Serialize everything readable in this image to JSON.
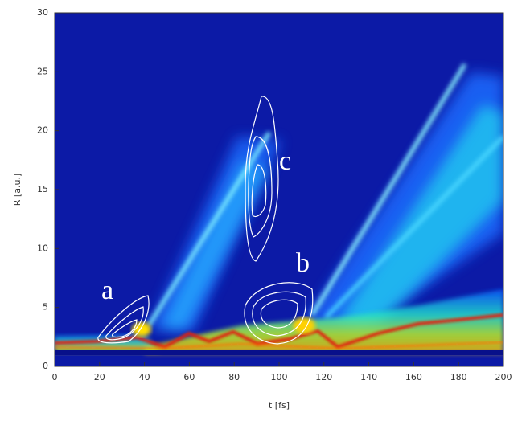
{
  "chart_data": {
    "type": "heatmap",
    "xlabel": "t [fs]",
    "ylabel": "R [a.u.]",
    "xlim": [
      0,
      200
    ],
    "xticks": [
      0,
      20,
      40,
      60,
      80,
      100,
      120,
      140,
      160,
      180,
      200
    ],
    "ylim": [
      0,
      30
    ],
    "yticks": [
      0,
      5,
      10,
      15,
      20,
      25,
      30
    ],
    "annotations": [
      "a",
      "b",
      "c"
    ]
  }
}
